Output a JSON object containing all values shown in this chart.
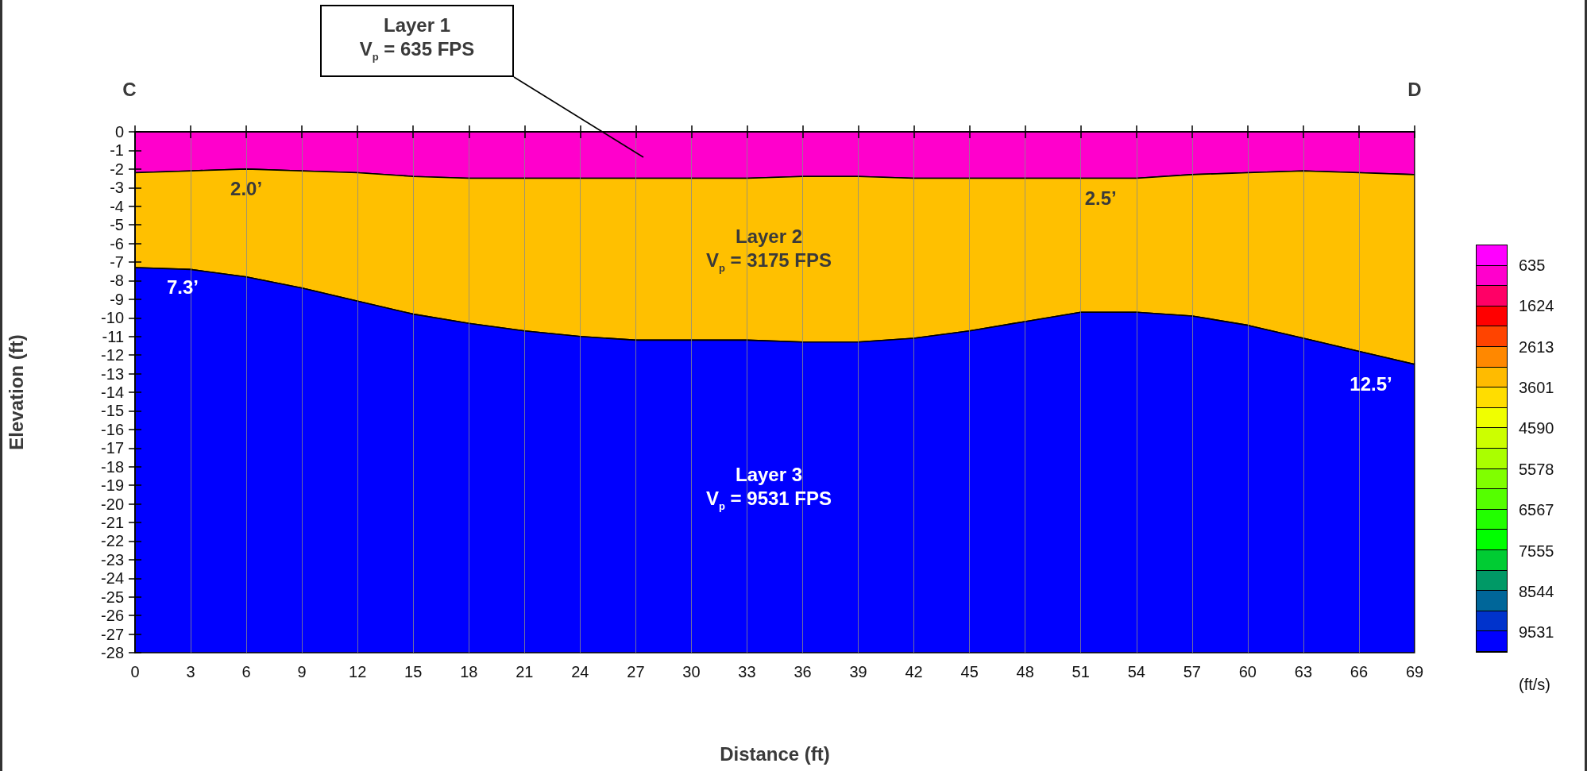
{
  "chart_data": {
    "type": "area",
    "stacked": true,
    "xlabel": "Distance (ft)",
    "ylabel": "Elevation (ft)",
    "clabel": "(ft/s)",
    "x": [
      0,
      3,
      6,
      9,
      12,
      15,
      18,
      21,
      24,
      27,
      30,
      33,
      36,
      39,
      42,
      45,
      48,
      51,
      54,
      57,
      60,
      63,
      66,
      69
    ],
    "series": [
      {
        "color": "#ff00cc",
        "values": [
          -2.2,
          -2.1,
          -2.0,
          -2.1,
          -2.2,
          -2.4,
          -2.5,
          -2.5,
          -2.5,
          -2.5,
          -2.5,
          -2.5,
          -2.4,
          -2.4,
          -2.5,
          -2.5,
          -2.5,
          -2.5,
          -2.5,
          -2.3,
          -2.2,
          -2.1,
          -2.2,
          -2.3
        ]
      },
      {
        "color": "#ffc000",
        "values": [
          -5.1,
          -5.3,
          -5.8,
          -6.3,
          -6.9,
          -7.4,
          -7.8,
          -8.2,
          -8.5,
          -8.7,
          -8.7,
          -8.7,
          -8.9,
          -8.9,
          -8.6,
          -8.2,
          -7.7,
          -7.2,
          -7.2,
          -7.6,
          -8.2,
          -9.0,
          -9.6,
          -10.2
        ]
      },
      {
        "color": "#0000ff",
        "values": [
          -20.7,
          -20.6,
          -20.2,
          -19.6,
          -18.9,
          -18.2,
          -17.7,
          -17.3,
          -17.0,
          -16.8,
          -16.8,
          -16.8,
          -16.7,
          -16.7,
          -16.9,
          -17.3,
          -17.8,
          -18.3,
          -18.3,
          -18.1,
          -17.6,
          -16.9,
          -16.2,
          -15.5
        ]
      }
    ],
    "xlim": [
      0,
      69
    ],
    "xticks": [
      0,
      3,
      6,
      9,
      12,
      15,
      18,
      21,
      24,
      27,
      30,
      33,
      36,
      39,
      42,
      45,
      48,
      51,
      54,
      57,
      60,
      63,
      66,
      69
    ],
    "ylim": [
      -28,
      0
    ],
    "yticks": [
      0,
      -1,
      -2,
      -3,
      -4,
      -5,
      -6,
      -7,
      -8,
      -9,
      -10,
      -11,
      -12,
      -13,
      -14,
      -15,
      -16,
      -17,
      -18,
      -19,
      -20,
      -21,
      -22,
      -23,
      -24,
      -25,
      -26,
      -27,
      -28
    ],
    "clim": [
      141,
      10025
    ],
    "cticks": [
      635,
      1624,
      2613,
      3601,
      4590,
      5578,
      6567,
      7555,
      8544,
      9531
    ],
    "grid": "x",
    "annotations": [
      "C",
      "D",
      "Layer 1\nV$_{p}$ = 635 FPS",
      "Layer 2\nV$_{p}$ = 3175 FPS",
      "Layer 3\nV$_{p}$ = 9531 FPS",
      {
        "text": "2.0’",
        "x": 6,
        "y": -2.0
      },
      {
        "text": "7.3’",
        "x": 0,
        "y": -7.3
      },
      {
        "text": "2.5’",
        "x": 51,
        "y": -2.5
      },
      {
        "text": "12.5’",
        "x": 69,
        "y": -12.5
      }
    ]
  }
}
